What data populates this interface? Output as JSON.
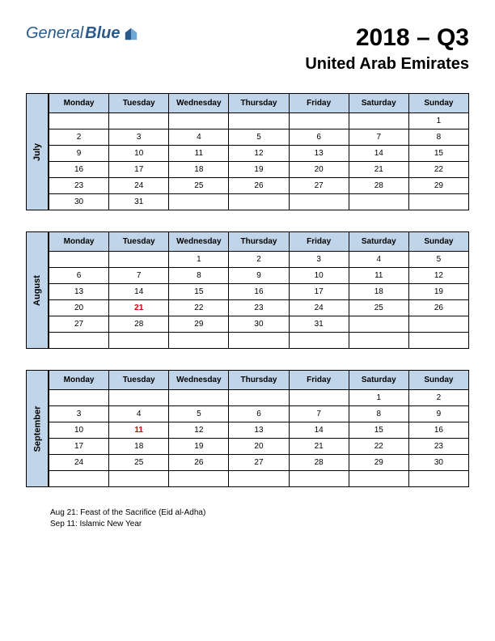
{
  "logo": {
    "part1": "General",
    "part2": "Blue"
  },
  "title": {
    "main": "2018 – Q3",
    "sub": "United Arab Emirates"
  },
  "days": [
    "Monday",
    "Tuesday",
    "Wednesday",
    "Thursday",
    "Friday",
    "Saturday",
    "Sunday"
  ],
  "colors": {
    "header_bg": "#c0d5ea",
    "border": "#000000",
    "holiday_text": "#cc0000",
    "logo_text": "#2a5a8a"
  },
  "months": [
    {
      "name": "July",
      "weeks": [
        [
          "",
          "",
          "",
          "",
          "",
          "",
          "1"
        ],
        [
          "2",
          "3",
          "4",
          "5",
          "6",
          "7",
          "8"
        ],
        [
          "9",
          "10",
          "11",
          "12",
          "13",
          "14",
          "15"
        ],
        [
          "16",
          "17",
          "18",
          "19",
          "20",
          "21",
          "22"
        ],
        [
          "23",
          "24",
          "25",
          "26",
          "27",
          "28",
          "29"
        ],
        [
          "30",
          "31",
          "",
          "",
          "",
          "",
          ""
        ]
      ],
      "holidays": []
    },
    {
      "name": "August",
      "weeks": [
        [
          "",
          "",
          "1",
          "2",
          "3",
          "4",
          "5"
        ],
        [
          "6",
          "7",
          "8",
          "9",
          "10",
          "11",
          "12"
        ],
        [
          "13",
          "14",
          "15",
          "16",
          "17",
          "18",
          "19"
        ],
        [
          "20",
          "21",
          "22",
          "23",
          "24",
          "25",
          "26"
        ],
        [
          "27",
          "28",
          "29",
          "30",
          "31",
          "",
          ""
        ],
        [
          "",
          "",
          "",
          "",
          "",
          "",
          ""
        ]
      ],
      "holidays": [
        "21"
      ]
    },
    {
      "name": "September",
      "weeks": [
        [
          "",
          "",
          "",
          "",
          "",
          "1",
          "2"
        ],
        [
          "3",
          "4",
          "5",
          "6",
          "7",
          "8",
          "9"
        ],
        [
          "10",
          "11",
          "12",
          "13",
          "14",
          "15",
          "16"
        ],
        [
          "17",
          "18",
          "19",
          "20",
          "21",
          "22",
          "23"
        ],
        [
          "24",
          "25",
          "26",
          "27",
          "28",
          "29",
          "30"
        ],
        [
          "",
          "",
          "",
          "",
          "",
          "",
          ""
        ]
      ],
      "holidays": [
        "11"
      ]
    }
  ],
  "holiday_notes": [
    "Aug 21: Feast of the Sacrifice (Eid al-Adha)",
    "Sep 11: Islamic New Year"
  ]
}
